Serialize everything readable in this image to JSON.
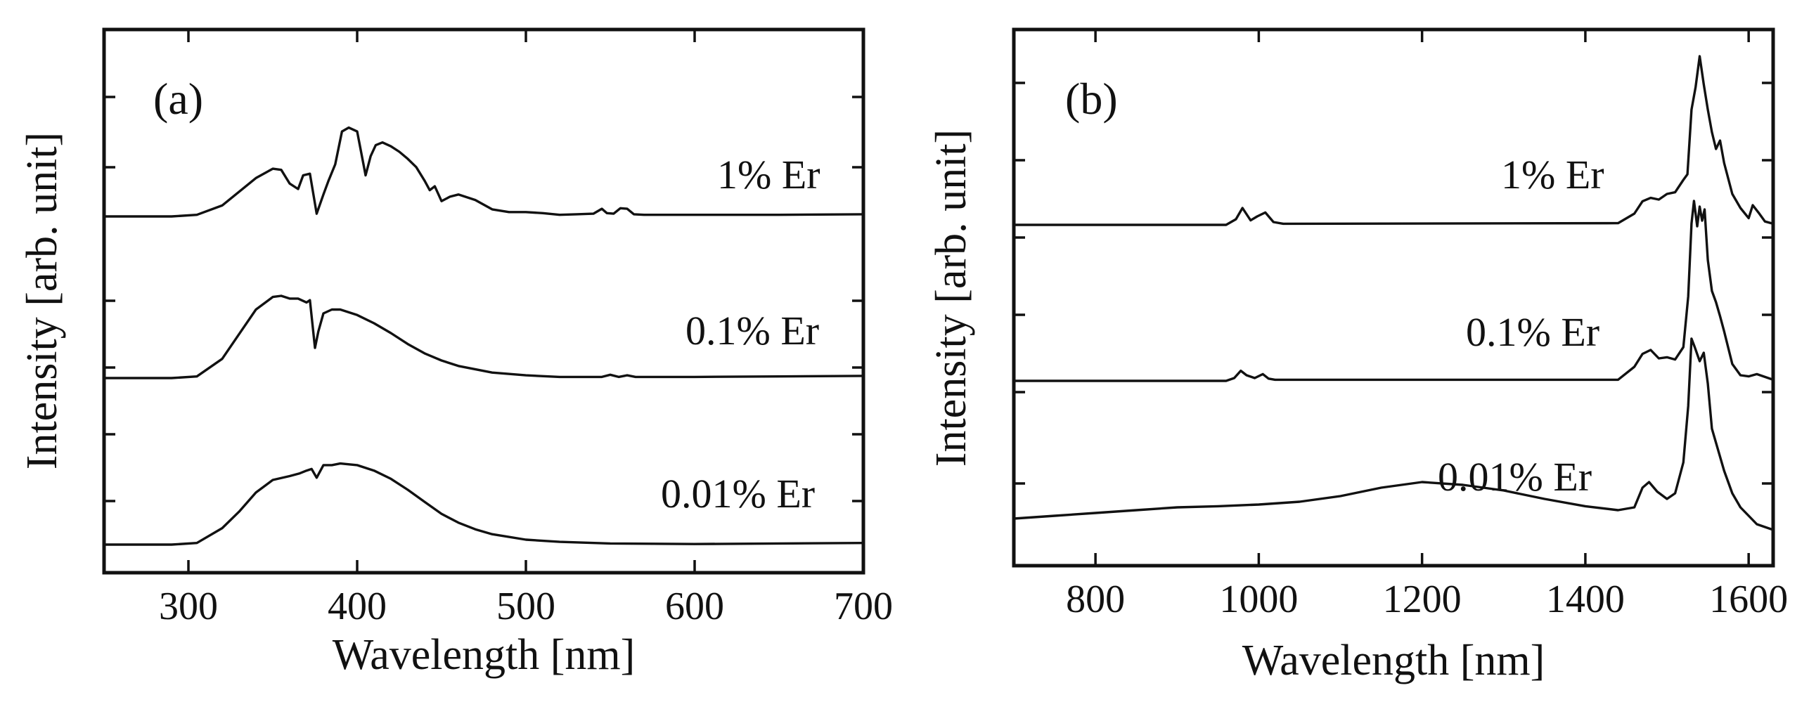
{
  "chart_data": [
    {
      "type": "line",
      "panel_label": "(a)",
      "xlabel": "Wavelength [nm]",
      "ylabel": "Intensity [arb. unit]",
      "xlim": [
        250,
        700
      ],
      "xticks": [
        "300",
        "400",
        "500",
        "600",
        "700"
      ],
      "grid": false,
      "stacked_offset": true,
      "series": [
        {
          "name": "1% Er",
          "x": [
            250,
            290,
            305,
            320,
            330,
            340,
            350,
            355,
            360,
            365,
            368,
            372,
            376,
            380,
            383,
            387,
            391,
            395,
            400,
            405,
            408,
            411,
            415,
            420,
            425,
            430,
            435,
            440,
            443,
            446,
            450,
            455,
            460,
            470,
            480,
            490,
            500,
            510,
            520,
            530,
            540,
            545,
            548,
            552,
            556,
            560,
            564,
            570,
            600,
            650,
            700
          ],
          "values": [
            0.0,
            0.0,
            0.03,
            0.2,
            0.45,
            0.7,
            0.87,
            0.85,
            0.6,
            0.5,
            0.75,
            0.78,
            0.05,
            0.4,
            0.65,
            0.95,
            1.55,
            1.62,
            1.55,
            0.75,
            1.1,
            1.3,
            1.35,
            1.28,
            1.18,
            1.05,
            0.9,
            0.65,
            0.48,
            0.55,
            0.28,
            0.36,
            0.4,
            0.3,
            0.13,
            0.08,
            0.08,
            0.06,
            0.03,
            0.04,
            0.05,
            0.14,
            0.06,
            0.05,
            0.15,
            0.14,
            0.04,
            0.03,
            0.03,
            0.03,
            0.04
          ]
        },
        {
          "name": "0.1% Er",
          "x": [
            250,
            290,
            305,
            320,
            330,
            340,
            350,
            355,
            360,
            365,
            370,
            372,
            375,
            377,
            380,
            385,
            390,
            400,
            410,
            420,
            430,
            440,
            450,
            460,
            480,
            500,
            520,
            545,
            550,
            555,
            560,
            565,
            600,
            650,
            700
          ],
          "values": [
            0.0,
            0.0,
            0.03,
            0.35,
            0.8,
            1.25,
            1.48,
            1.5,
            1.45,
            1.45,
            1.38,
            1.42,
            0.55,
            0.85,
            1.18,
            1.25,
            1.25,
            1.15,
            1.0,
            0.82,
            0.62,
            0.45,
            0.32,
            0.22,
            0.1,
            0.05,
            0.02,
            0.02,
            0.06,
            0.02,
            0.05,
            0.02,
            0.02,
            0.03,
            0.04
          ]
        },
        {
          "name": "0.01% Er",
          "x": [
            250,
            290,
            305,
            320,
            330,
            340,
            350,
            360,
            366,
            370,
            373,
            376,
            380,
            385,
            390,
            400,
            410,
            420,
            430,
            440,
            450,
            460,
            470,
            480,
            500,
            520,
            550,
            600,
            650,
            700
          ],
          "values": [
            0.0,
            0.0,
            0.03,
            0.3,
            0.6,
            0.95,
            1.18,
            1.25,
            1.3,
            1.35,
            1.38,
            1.22,
            1.45,
            1.45,
            1.48,
            1.45,
            1.35,
            1.2,
            1.0,
            0.78,
            0.56,
            0.4,
            0.28,
            0.19,
            0.09,
            0.05,
            0.02,
            0.01,
            0.02,
            0.03
          ]
        }
      ]
    },
    {
      "type": "line",
      "panel_label": "(b)",
      "xlabel": "Wavelength [nm]",
      "ylabel": "Intensity [arb. unit]",
      "xlim": [
        700,
        1630
      ],
      "xticks": [
        "800",
        "1000",
        "1200",
        "1400",
        "1600"
      ],
      "grid": false,
      "stacked_offset": true,
      "series": [
        {
          "name": "1% Er",
          "x": [
            700,
            960,
            972,
            980,
            990,
            998,
            1008,
            1018,
            1030,
            1440,
            1460,
            1470,
            1480,
            1490,
            1500,
            1510,
            1520,
            1525,
            1530,
            1535,
            1540,
            1545,
            1550,
            1555,
            1560,
            1565,
            1570,
            1580,
            1590,
            1600,
            1605,
            1612,
            1620,
            1630
          ],
          "values": [
            0.0,
            0.0,
            0.1,
            0.3,
            0.08,
            0.15,
            0.22,
            0.05,
            0.02,
            0.03,
            0.2,
            0.42,
            0.48,
            0.45,
            0.55,
            0.58,
            0.8,
            0.9,
            2.05,
            2.45,
            3.0,
            2.5,
            2.05,
            1.65,
            1.35,
            1.5,
            1.1,
            0.55,
            0.3,
            0.12,
            0.35,
            0.22,
            0.06,
            0.02
          ]
        },
        {
          "name": "0.1% Er",
          "x": [
            700,
            960,
            970,
            978,
            985,
            995,
            1005,
            1012,
            1020,
            1440,
            1460,
            1470,
            1480,
            1490,
            1500,
            1510,
            1520,
            1526,
            1530,
            1533,
            1537,
            1540,
            1543,
            1546,
            1550,
            1555,
            1560,
            1565,
            1570,
            1580,
            1590,
            1600,
            1610,
            1630
          ],
          "values": [
            0.0,
            0.0,
            0.05,
            0.18,
            0.1,
            0.05,
            0.12,
            0.04,
            0.02,
            0.02,
            0.25,
            0.48,
            0.55,
            0.4,
            0.42,
            0.38,
            0.6,
            1.5,
            2.8,
            3.2,
            2.75,
            3.1,
            2.85,
            3.05,
            2.15,
            1.6,
            1.4,
            1.15,
            0.88,
            0.3,
            0.1,
            0.08,
            0.12,
            0.02
          ]
        },
        {
          "name": "0.01% Er",
          "x": [
            700,
            750,
            800,
            850,
            900,
            950,
            1000,
            1050,
            1100,
            1150,
            1200,
            1250,
            1300,
            1350,
            1400,
            1440,
            1460,
            1470,
            1478,
            1488,
            1500,
            1510,
            1520,
            1526,
            1530,
            1534,
            1540,
            1545,
            1550,
            1555,
            1560,
            1570,
            1580,
            1590,
            1600,
            1610,
            1630
          ],
          "values": [
            0.4,
            0.45,
            0.5,
            0.55,
            0.6,
            0.62,
            0.65,
            0.7,
            0.8,
            0.95,
            1.05,
            1.0,
            0.9,
            0.75,
            0.62,
            0.55,
            0.6,
            0.95,
            1.05,
            0.88,
            0.75,
            0.85,
            1.4,
            2.4,
            3.6,
            3.45,
            3.2,
            3.35,
            2.8,
            2.0,
            1.75,
            1.25,
            0.85,
            0.6,
            0.45,
            0.3,
            0.2
          ]
        }
      ]
    }
  ]
}
